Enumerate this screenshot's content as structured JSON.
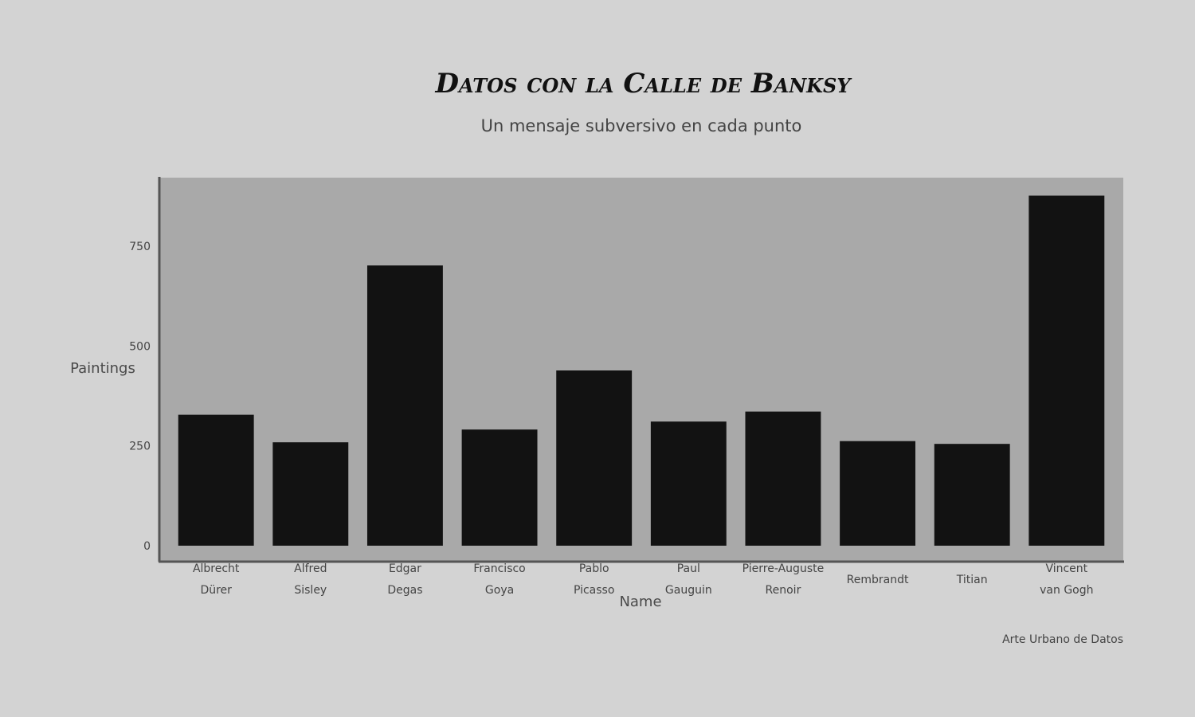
{
  "chart_data": {
    "type": "bar",
    "title": "Datos con la Calle de Banksy",
    "subtitle": "Un mensaje subversivo en cada punto",
    "xlabel": "Name",
    "ylabel": "Paintings",
    "caption": "Arte Urbano de Datos",
    "categories": [
      [
        "Albrecht",
        "Dürer"
      ],
      [
        "Alfred",
        "Sisley"
      ],
      [
        "Edgar",
        "Degas"
      ],
      [
        "Francisco",
        "Goya"
      ],
      [
        "Pablo",
        "Picasso"
      ],
      [
        "Paul",
        "Gauguin"
      ],
      [
        "Pierre-Auguste",
        "Renoir"
      ],
      [
        "Rembrandt"
      ],
      [
        "Titian"
      ],
      [
        "Vincent",
        "van Gogh"
      ]
    ],
    "values": [
      328,
      259,
      702,
      291,
      439,
      311,
      336,
      262,
      255,
      877
    ],
    "yticks": [
      0,
      250,
      500,
      750
    ],
    "ylim": [
      -40,
      922
    ],
    "grid": false,
    "colors": {
      "background": "#d3d3d3",
      "panel": "#a9a9a9",
      "bar": "#121212",
      "axis": "#555555"
    }
  }
}
